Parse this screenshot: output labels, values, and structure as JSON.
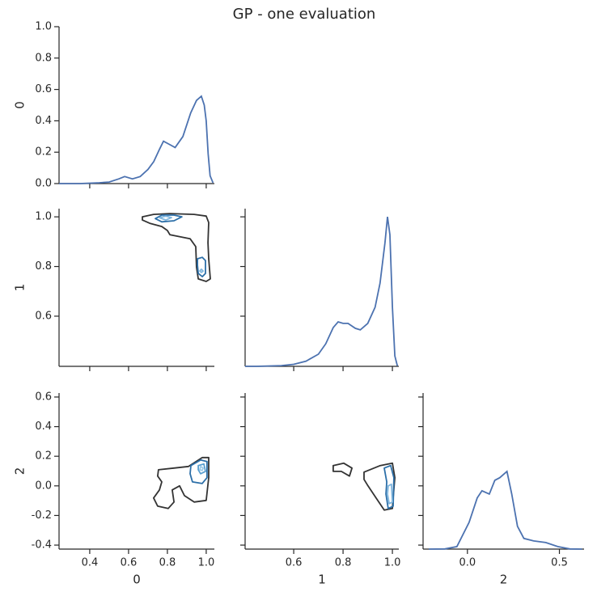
{
  "title": "GP - one evaluation",
  "chart_data": [
    {
      "type": "line",
      "color": "#4c72b0",
      "ylabel": "0",
      "xticklabels": false,
      "yticklabels": true,
      "xlim": [
        0.242,
        1.042
      ],
      "ylim": [
        0,
        1
      ],
      "xticks": [
        0.4,
        0.6,
        0.8,
        {
          "value": 1,
          "label": "1.0"
        }
      ],
      "yticks": [
        {
          "value": 0,
          "label": "0.0"
        },
        0.2,
        0.4,
        0.6,
        0.8,
        {
          "value": 1,
          "label": "1.0"
        }
      ],
      "x": [
        0.242,
        0.35,
        0.45,
        0.5,
        0.55,
        0.58,
        0.62,
        0.66,
        0.7,
        0.73,
        0.76,
        0.78,
        0.81,
        0.84,
        0.88,
        0.92,
        0.95,
        0.975,
        0.99,
        1.0,
        1.01,
        1.02,
        1.035
      ],
      "values": [
        0,
        0,
        0.005,
        0.01,
        0.03,
        0.045,
        0.03,
        0.045,
        0.09,
        0.14,
        0.22,
        0.27,
        0.25,
        0.23,
        0.3,
        0.45,
        0.53,
        0.557,
        0.5,
        0.4,
        0.19,
        0.05,
        0.005
      ]
    },
    {
      "type": "contour",
      "ylabel": "1",
      "xticklabels": false,
      "yticklabels": true,
      "xlim": [
        0.242,
        1.042
      ],
      "ylim": [
        0.398,
        1.033
      ],
      "xticks": [
        0.4,
        0.6,
        0.8,
        {
          "value": 1,
          "label": "1.0"
        }
      ],
      "yticks": [
        0.6,
        0.8,
        {
          "value": 1,
          "label": "1.0"
        }
      ],
      "levels": [
        {
          "color": "#333333",
          "x": [
            0.671,
            0.729,
            0.813,
            0.938,
            1.0,
            1.013,
            1.009,
            1.013,
            1.021,
            1.0,
            0.959,
            0.95,
            0.946,
            0.917,
            0.813,
            0.8,
            0.771,
            0.709,
            0.671
          ],
          "y": [
            1.0,
            1.01,
            1.013,
            1.01,
            1.003,
            0.977,
            0.896,
            0.831,
            0.75,
            0.74,
            0.75,
            0.798,
            0.88,
            0.912,
            0.928,
            0.945,
            0.961,
            0.974,
            0.987
          ]
        },
        {
          "color": "#2c6fa8",
          "x": [
            0.738,
            0.771,
            0.834,
            0.875,
            0.834,
            0.771
          ],
          "y": [
            0.993,
            1.007,
            1.007,
            1.0,
            0.984,
            0.98
          ]
        },
        {
          "color": "#2c6fa8",
          "x": [
            0.955,
            0.98,
            0.996,
            0.996,
            0.98,
            0.959,
            0.955
          ],
          "y": [
            0.831,
            0.837,
            0.824,
            0.772,
            0.759,
            0.772,
            0.805
          ]
        },
        {
          "color": "#7fb6de",
          "x": [
            0.759,
            0.792,
            0.821,
            0.792
          ],
          "y": [
            0.997,
            1.003,
            0.997,
            0.987
          ]
        },
        {
          "color": "#7fb6de",
          "x": [
            0.975,
            0.984,
            0.975,
            0.967
          ],
          "y": [
            0.789,
            0.782,
            0.776,
            0.782
          ]
        }
      ]
    },
    {
      "type": "line",
      "color": "#4c72b0",
      "xticklabels": false,
      "yticklabels": false,
      "xlim": [
        0.403,
        1.026
      ],
      "ylim": [
        0.398,
        1.033
      ],
      "xticks": [
        0.6,
        0.8,
        {
          "value": 1,
          "label": "1.0"
        }
      ],
      "yticks": [
        0.6,
        0.8,
        {
          "value": 1,
          "label": "1.0"
        }
      ],
      "x": [
        0.403,
        0.45,
        0.55,
        0.6,
        0.65,
        0.7,
        0.73,
        0.76,
        0.78,
        0.8,
        0.82,
        0.85,
        0.87,
        0.9,
        0.93,
        0.95,
        0.97,
        0.98,
        0.99,
        1.0,
        1.01,
        1.02
      ],
      "values": [
        0.398,
        0.398,
        0.401,
        0.406,
        0.419,
        0.447,
        0.489,
        0.554,
        0.577,
        0.571,
        0.571,
        0.551,
        0.545,
        0.571,
        0.636,
        0.733,
        0.896,
        1.0,
        0.928,
        0.636,
        0.44,
        0.4
      ]
    },
    {
      "type": "contour",
      "xlabel": "0",
      "ylabel": "2",
      "xticklabels": true,
      "yticklabels": true,
      "xlim": [
        0.242,
        1.042
      ],
      "ylim": [
        -0.427,
        0.627
      ],
      "xticks": [
        0.4,
        0.6,
        0.8,
        {
          "value": 1,
          "label": "1.0"
        }
      ],
      "yticks": [
        -0.4,
        -0.2,
        {
          "value": 0,
          "label": "0.0"
        },
        0.2,
        0.4,
        0.6
      ],
      "levels": [
        {
          "color": "#333333",
          "x": [
            0.754,
            0.834,
            0.909,
            0.98,
            1.013,
            1.013,
            1.0,
            0.938,
            0.888,
            0.863,
            0.825,
            0.834,
            0.804,
            0.75,
            0.729,
            0.759,
            0.771,
            0.75
          ],
          "y": [
            0.109,
            0.12,
            0.131,
            0.191,
            0.191,
            0.055,
            -0.098,
            -0.109,
            -0.066,
            0,
            -0.027,
            -0.109,
            -0.153,
            -0.137,
            -0.082,
            -0.027,
            0.027,
            0.066
          ]
        },
        {
          "color": "#2c6fa8",
          "x": [
            0.921,
            0.971,
            1.004,
            1.004,
            0.979,
            0.929,
            0.917
          ],
          "y": [
            0.137,
            0.175,
            0.164,
            0.055,
            0.016,
            0.027,
            0.082
          ]
        },
        {
          "color": "#5a9fd0",
          "x": [
            0.959,
            0.988,
            0.996,
            0.971,
            0.959
          ],
          "y": [
            0.137,
            0.148,
            0.098,
            0.082,
            0.109
          ]
        },
        {
          "color": "#9ccae8",
          "x": [
            0.971,
            0.984,
            0.979,
            0.967
          ],
          "y": [
            0.131,
            0.12,
            0.104,
            0.109
          ]
        }
      ]
    },
    {
      "type": "contour",
      "xlabel": "1",
      "xticklabels": true,
      "yticklabels": false,
      "xlim": [
        0.403,
        1.026
      ],
      "ylim": [
        -0.427,
        0.627
      ],
      "xticks": [
        0.6,
        0.8,
        {
          "value": 1,
          "label": "1.0"
        }
      ],
      "yticks": [
        -0.4,
        -0.2,
        {
          "value": 0,
          "label": "0.0"
        },
        0.2,
        0.4,
        0.6
      ],
      "levels": [
        {
          "color": "#333333",
          "x": [
            0.76,
            0.803,
            0.836,
            0.826,
            0.793,
            0.76
          ],
          "y": [
            0.137,
            0.153,
            0.12,
            0.066,
            0.098,
            0.098
          ]
        },
        {
          "color": "#333333",
          "x": [
            0.885,
            0.951,
            1.0,
            1.01,
            1.003,
            1.0,
            0.967,
            0.934,
            0.901,
            0.885
          ],
          "y": [
            0.093,
            0.137,
            0.153,
            0.055,
            -0.082,
            -0.153,
            -0.164,
            -0.082,
            0,
            0.044
          ]
        },
        {
          "color": "#2c6fa8",
          "x": [
            0.967,
            0.993,
            1.006,
            1.003,
            0.983,
            0.974,
            0.977
          ],
          "y": [
            0.12,
            0.137,
            0.055,
            -0.137,
            -0.153,
            -0.055,
            0.027
          ]
        },
        {
          "color": "#7fb6de",
          "x": [
            0.983,
            0.996,
            1.0,
            0.987,
            0.98
          ],
          "y": [
            0,
            0.011,
            -0.109,
            -0.12,
            -0.055
          ]
        }
      ]
    },
    {
      "type": "line",
      "color": "#4c72b0",
      "xlabel": "2",
      "xticklabels": true,
      "yticklabels": false,
      "xlim": [
        -0.241,
        0.634
      ],
      "ylim": [
        -0.427,
        0.627
      ],
      "xticks": [
        {
          "value": 0,
          "label": "0.0"
        },
        0.5
      ],
      "yticks": [
        -0.4,
        -0.2,
        {
          "value": 0,
          "label": "0.0"
        },
        0.2,
        0.4,
        0.6
      ],
      "x": [
        -0.21,
        -0.123,
        -0.057,
        0.009,
        0.053,
        0.079,
        0.119,
        0.149,
        0.176,
        0.215,
        0.241,
        0.272,
        0.307,
        0.36,
        0.426,
        0.491,
        0.557,
        0.623
      ],
      "values": [
        -0.427,
        -0.426,
        -0.41,
        -0.246,
        -0.082,
        -0.033,
        -0.055,
        0.038,
        0.055,
        0.098,
        -0.055,
        -0.273,
        -0.355,
        -0.372,
        -0.383,
        -0.41,
        -0.426,
        -0.427
      ]
    }
  ]
}
